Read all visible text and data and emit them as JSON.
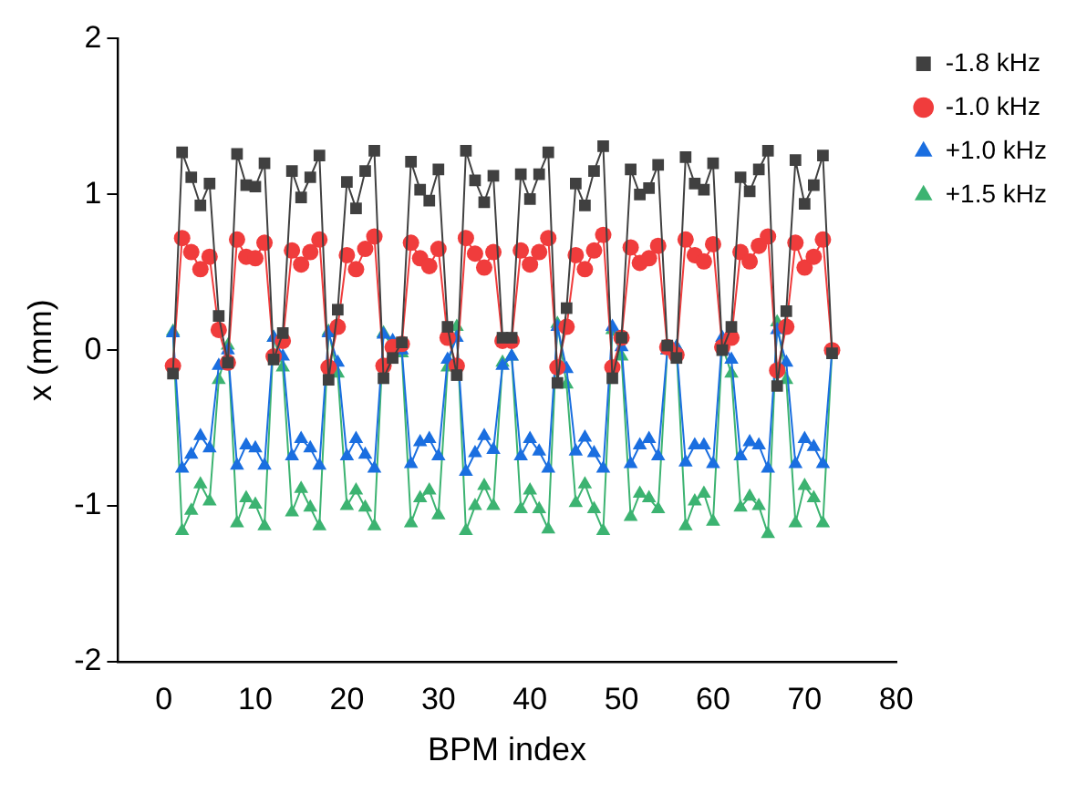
{
  "chart_data": {
    "type": "line",
    "xlabel": "BPM index",
    "ylabel": "x (mm)",
    "x": [
      1,
      2,
      3,
      4,
      5,
      6,
      7,
      8,
      9,
      10,
      11,
      12,
      13,
      14,
      15,
      16,
      17,
      18,
      19,
      20,
      21,
      22,
      23,
      24,
      25,
      26,
      27,
      28,
      29,
      30,
      31,
      32,
      33,
      34,
      35,
      36,
      37,
      38,
      39,
      40,
      41,
      42,
      43,
      44,
      45,
      46,
      47,
      48,
      49,
      50,
      51,
      52,
      53,
      54,
      55,
      56,
      57,
      58,
      59,
      60,
      61,
      62,
      63,
      64,
      65,
      66,
      67,
      68,
      69,
      70,
      71,
      72,
      73
    ],
    "series": [
      {
        "name": "-1.8 kHz",
        "color": "#404040",
        "marker": "square",
        "values": [
          -0.15,
          1.27,
          1.11,
          0.93,
          1.07,
          0.22,
          -0.08,
          1.26,
          1.06,
          1.05,
          1.2,
          -0.06,
          0.11,
          1.15,
          0.98,
          1.11,
          1.25,
          -0.19,
          0.26,
          1.08,
          0.91,
          1.15,
          1.28,
          -0.18,
          -0.05,
          0.05,
          1.21,
          1.03,
          0.96,
          1.16,
          0.15,
          -0.16,
          1.28,
          1.09,
          0.95,
          1.12,
          0.08,
          0.08,
          1.13,
          0.97,
          1.13,
          1.27,
          -0.21,
          0.27,
          1.07,
          0.93,
          1.15,
          1.31,
          -0.18,
          0.08,
          1.16,
          1.0,
          1.04,
          1.19,
          0.03,
          -0.05,
          1.24,
          1.07,
          1.03,
          1.2,
          0.0,
          0.15,
          1.11,
          1.02,
          1.16,
          1.28,
          -0.23,
          0.25,
          1.22,
          0.94,
          1.06,
          1.25,
          -0.02
        ]
      },
      {
        "name": "-1.0 kHz",
        "color": "#f03c3c",
        "marker": "circle",
        "values": [
          -0.1,
          0.72,
          0.63,
          0.52,
          0.6,
          0.13,
          -0.08,
          0.71,
          0.6,
          0.59,
          0.69,
          -0.04,
          0.06,
          0.64,
          0.55,
          0.63,
          0.71,
          -0.11,
          0.15,
          0.61,
          0.52,
          0.65,
          0.73,
          -0.1,
          0.02,
          0.04,
          0.69,
          0.59,
          0.54,
          0.65,
          0.08,
          -0.1,
          0.72,
          0.62,
          0.53,
          0.63,
          0.06,
          0.06,
          0.64,
          0.55,
          0.63,
          0.72,
          -0.11,
          0.15,
          0.61,
          0.52,
          0.64,
          0.74,
          -0.11,
          0.08,
          0.66,
          0.56,
          0.59,
          0.67,
          0.02,
          -0.03,
          0.71,
          0.61,
          0.57,
          0.68,
          0.02,
          0.08,
          0.63,
          0.57,
          0.67,
          0.73,
          -0.13,
          0.15,
          0.69,
          0.53,
          0.6,
          0.71,
          0.0
        ]
      },
      {
        "name": "+1.0 kHz",
        "color": "#1a6ee0",
        "marker": "triangle",
        "values": [
          0.11,
          -0.76,
          -0.67,
          -0.55,
          -0.63,
          -0.1,
          0.0,
          -0.74,
          -0.61,
          -0.63,
          -0.74,
          0.08,
          -0.04,
          -0.68,
          -0.57,
          -0.63,
          -0.74,
          0.11,
          -0.08,
          -0.68,
          -0.57,
          -0.67,
          -0.76,
          0.1,
          0.06,
          0.0,
          -0.73,
          -0.59,
          -0.57,
          -0.68,
          -0.06,
          0.08,
          -0.78,
          -0.66,
          -0.55,
          -0.64,
          -0.1,
          -0.04,
          -0.68,
          -0.57,
          -0.65,
          -0.76,
          0.15,
          -0.12,
          -0.65,
          -0.56,
          -0.66,
          -0.76,
          0.15,
          0.02,
          -0.73,
          -0.61,
          -0.57,
          -0.68,
          0.0,
          0.02,
          -0.72,
          -0.61,
          -0.61,
          -0.73,
          0.08,
          -0.06,
          -0.68,
          -0.59,
          -0.61,
          -0.76,
          0.13,
          -0.08,
          -0.73,
          -0.57,
          -0.62,
          -0.73,
          0.0
        ]
      },
      {
        "name": "+1.5 kHz",
        "color": "#3cb371",
        "marker": "triangle",
        "values": [
          0.12,
          -1.16,
          -1.03,
          -0.86,
          -0.97,
          -0.19,
          0.03,
          -1.11,
          -0.95,
          -0.99,
          -1.13,
          0.08,
          -0.11,
          -1.04,
          -0.89,
          -1.01,
          -1.13,
          0.12,
          -0.15,
          -1.0,
          -0.9,
          -1.01,
          -1.13,
          0.11,
          0.02,
          -0.02,
          -1.11,
          -0.95,
          -0.9,
          -1.06,
          -0.11,
          0.15,
          -1.16,
          -1.0,
          -0.87,
          -1.0,
          -0.08,
          -0.04,
          -1.02,
          -0.9,
          -1.02,
          -1.15,
          0.17,
          -0.22,
          -0.98,
          -0.86,
          -1.02,
          -1.16,
          0.13,
          -0.04,
          -1.07,
          -0.92,
          -0.95,
          -1.02,
          0.0,
          0.02,
          -1.13,
          -0.97,
          -0.92,
          -1.1,
          0.03,
          -0.15,
          -1.01,
          -0.94,
          -1.0,
          -1.18,
          0.18,
          -0.19,
          -1.11,
          -0.87,
          -0.95,
          -1.11,
          0.0
        ]
      }
    ],
    "xlim": [
      -5,
      80
    ],
    "xticks": [
      0,
      10,
      20,
      30,
      40,
      50,
      60,
      70,
      80
    ],
    "ylim": [
      -2,
      2
    ],
    "yticks": [
      -2,
      -1,
      0,
      1,
      2
    ],
    "grid": false,
    "legend": "top right",
    "line_style": "solid"
  }
}
